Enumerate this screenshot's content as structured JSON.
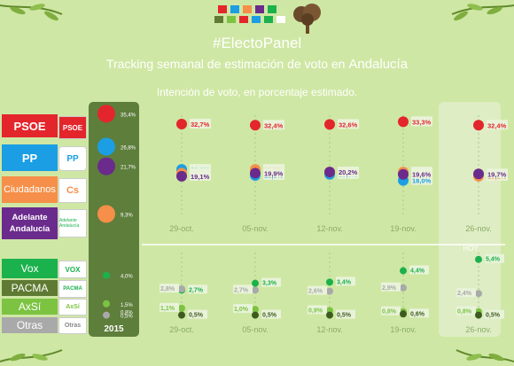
{
  "header": {
    "brand": "#ElectoPanel",
    "title_prefix": "Tracking semanal de estimación de voto en ",
    "title_region": "Andalucía",
    "subtitle": "Intención de voto, en porcentaje estimado."
  },
  "parties": [
    {
      "label": "PSOE",
      "color": "#e3262c",
      "logo": "PSOE"
    },
    {
      "label": "PP",
      "color": "#1b9ee3",
      "logo": "PP"
    },
    {
      "label": "Ciudadanos",
      "color": "#f58f49",
      "logo": "Cs"
    },
    {
      "label": "Adelante Andalucía",
      "color": "#6a2b8c",
      "logo": "Adelante Andalucía"
    },
    {
      "label": "Vox",
      "color": "#1bb14c",
      "logo": "VOX"
    },
    {
      "label": "PACMA",
      "color": "#5f7a32",
      "logo": "PACMA"
    },
    {
      "label": "AxSí",
      "color": "#7cc342",
      "logo": "AxSí"
    },
    {
      "label": "Otras",
      "color": "#a9a9a9",
      "logo": "Otras"
    }
  ],
  "year_label": "2015",
  "hoy_label": "HOY",
  "chart_data": {
    "type": "scatter",
    "title": "Tracking semanal de estimación de voto en Andalucía",
    "subtitle": "Intención de voto, en porcentaje estimado.",
    "x": [
      "29-oct.",
      "05-nov.",
      "12-nov.",
      "19-nov.",
      "26-nov."
    ],
    "baseline_2015": [
      {
        "name": "PSOE",
        "value": "35,4%"
      },
      {
        "name": "PP",
        "value": "26,8%"
      },
      {
        "name": "Adelante Andalucía",
        "value": "21,7%"
      },
      {
        "name": "Ciudadanos",
        "value": "9,3%"
      },
      {
        "name": "Vox",
        "value": "4,0%"
      },
      {
        "name": "AxSí",
        "value": "1,5%"
      },
      {
        "name": "PACMA",
        "value": "0,8%"
      },
      {
        "name": "Otras",
        "value": "0,5%"
      }
    ],
    "upper_panel": [
      {
        "name": "PSOE",
        "color": "#e3262c",
        "values": [
          32.7,
          32.4,
          32.6,
          33.3,
          32.4
        ],
        "labels": [
          "32,7%",
          "32,4%",
          "32,6%",
          "33,3%",
          "32,4%"
        ]
      },
      {
        "name": "PP",
        "color": "#1b9ee3",
        "values": [
          20.9,
          19.3,
          19.6,
          18.0,
          19.3
        ],
        "labels": [
          "20,9%",
          "19,3%",
          "19,6%",
          "18,0%",
          "19,3%"
        ]
      },
      {
        "name": "Ciudadanos",
        "color": "#f58f49",
        "values": [
          19.9,
          20.9,
          20.2,
          20.2,
          19.1
        ],
        "labels": [
          "19,9%",
          "20,9%",
          "20,2%",
          "20,2%",
          "19,1%"
        ]
      },
      {
        "name": "Adelante Andalucía",
        "color": "#6a2b8c",
        "values": [
          19.1,
          19.9,
          20.2,
          19.6,
          19.7
        ],
        "labels": [
          "19,1%",
          "19,9%",
          "20,2%",
          "19,6%",
          "19,7%"
        ]
      }
    ],
    "lower_panel": [
      {
        "name": "Vox",
        "color": "#1bb14c",
        "values": [
          2.7,
          3.3,
          3.4,
          4.4,
          5.4
        ],
        "labels": [
          "2,7%",
          "3,3%",
          "3,4%",
          "4,4%",
          "5,4%"
        ]
      },
      {
        "name": "Otras",
        "color": "#a9a9a9",
        "values": [
          2.8,
          2.7,
          2.6,
          2.9,
          2.4
        ],
        "labels": [
          "2,8%",
          "2,7%",
          "2,6%",
          "2,9%",
          "2,4%"
        ]
      },
      {
        "name": "AxSí",
        "color": "#7cc342",
        "values": [
          1.1,
          1.0,
          0.9,
          0.8,
          0.8
        ],
        "labels": [
          "1,1%",
          "1,0%",
          "0,9%",
          "0,8%",
          "0,8%"
        ]
      },
      {
        "name": "PACMA",
        "color": "#3d5a1f",
        "values": [
          0.5,
          0.5,
          0.5,
          0.6,
          0.5
        ],
        "labels": [
          "0,5%",
          "0,5%",
          "0,5%",
          "0,6%",
          "0,5%"
        ]
      }
    ]
  }
}
